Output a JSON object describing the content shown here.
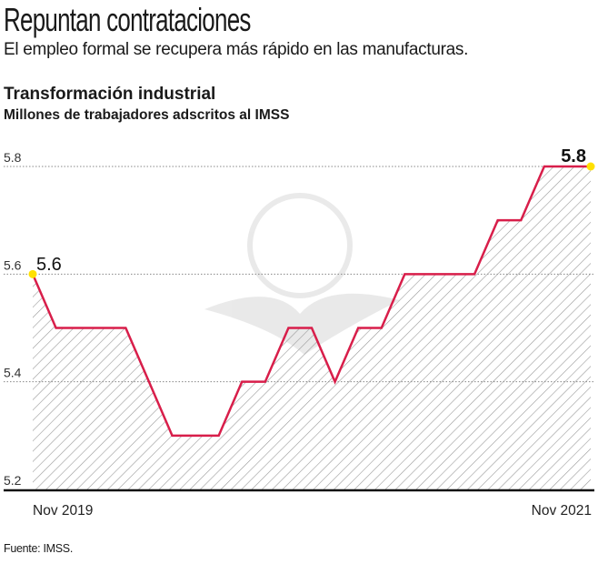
{
  "header": {
    "title": "Repuntan contrataciones",
    "subtitle": "El empleo formal se recupera más rápido en las manufacturas."
  },
  "chart_data": {
    "type": "area",
    "title": "Transformación industrial",
    "subtitle": "Millones de trabajadores adscritos al IMSS",
    "x_tick_labels": [
      "Nov 2019",
      "Nov 2021"
    ],
    "x_start": "Nov 2019",
    "x_end": "Nov 2021",
    "x_frequency": "monthly",
    "values": [
      5.6,
      5.5,
      5.5,
      5.5,
      5.5,
      5.4,
      5.3,
      5.3,
      5.3,
      5.4,
      5.4,
      5.5,
      5.5,
      5.4,
      5.5,
      5.5,
      5.6,
      5.6,
      5.6,
      5.6,
      5.7,
      5.7,
      5.8,
      5.8,
      5.8
    ],
    "ylim": [
      5.2,
      5.8
    ],
    "y_ticks": [
      "5.2",
      "5.4",
      "5.6",
      "5.8"
    ],
    "annotations": {
      "start": "5.6",
      "end": "5.8"
    },
    "grid": "dotted horizontal",
    "fill": "diagonal hatch",
    "line_color": "#d81e4a",
    "marker_color": "#ffe000"
  },
  "source": "Fuente: IMSS."
}
